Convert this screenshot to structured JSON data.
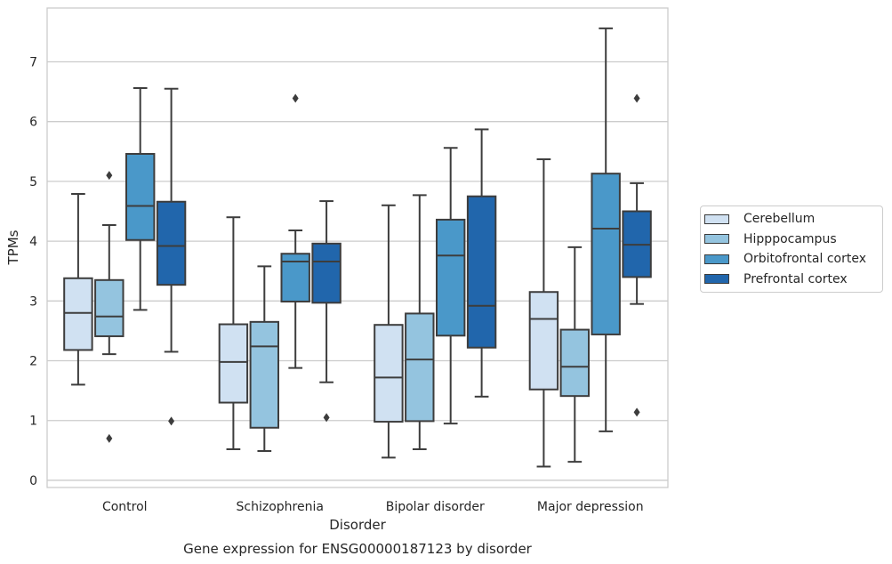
{
  "chart_data": {
    "type": "box",
    "xlabel": "Disorder",
    "ylabel": "TPMs",
    "caption": "Gene expression for ENSG00000187123 by disorder",
    "ylim": [
      -0.12,
      7.9
    ],
    "yticks": [
      0,
      1,
      2,
      3,
      4,
      5,
      6,
      7
    ],
    "grid": "horizontal",
    "legend_position": "right",
    "categories": [
      "Control",
      "Schizophrenia",
      "Bipolar disorder",
      "Major depression"
    ],
    "series": [
      {
        "name": "Cerebellum",
        "color": "#d0e1f2",
        "boxes": [
          {
            "whislo": 1.6,
            "q1": 2.18,
            "med": 2.8,
            "q3": 3.38,
            "whishi": 4.79,
            "fliers": []
          },
          {
            "whislo": 0.52,
            "q1": 1.3,
            "med": 1.98,
            "q3": 2.61,
            "whishi": 4.4,
            "fliers": []
          },
          {
            "whislo": 0.38,
            "q1": 0.98,
            "med": 1.72,
            "q3": 2.6,
            "whishi": 4.6,
            "fliers": []
          },
          {
            "whislo": 0.23,
            "q1": 1.52,
            "med": 2.7,
            "q3": 3.15,
            "whishi": 5.37,
            "fliers": []
          }
        ]
      },
      {
        "name": "Hipppocampus",
        "color": "#94c4df",
        "boxes": [
          {
            "whislo": 2.11,
            "q1": 2.41,
            "med": 2.74,
            "q3": 3.35,
            "whishi": 4.27,
            "fliers": [
              5.1,
              0.7
            ]
          },
          {
            "whislo": 0.49,
            "q1": 0.88,
            "med": 2.24,
            "q3": 2.65,
            "whishi": 3.58,
            "fliers": []
          },
          {
            "whislo": 0.52,
            "q1": 0.99,
            "med": 2.02,
            "q3": 2.79,
            "whishi": 4.77,
            "fliers": []
          },
          {
            "whislo": 0.31,
            "q1": 1.41,
            "med": 1.9,
            "q3": 2.52,
            "whishi": 3.9,
            "fliers": []
          }
        ]
      },
      {
        "name": "Orbitofrontal cortex",
        "color": "#4a98c9",
        "boxes": [
          {
            "whislo": 2.85,
            "q1": 4.02,
            "med": 4.59,
            "q3": 5.46,
            "whishi": 6.56,
            "fliers": []
          },
          {
            "whislo": 1.88,
            "q1": 2.99,
            "med": 3.66,
            "q3": 3.79,
            "whishi": 4.18,
            "fliers": [
              6.39
            ]
          },
          {
            "whislo": 0.95,
            "q1": 2.42,
            "med": 3.76,
            "q3": 4.36,
            "whishi": 5.56,
            "fliers": []
          },
          {
            "whislo": 0.82,
            "q1": 2.44,
            "med": 4.21,
            "q3": 5.13,
            "whishi": 7.56,
            "fliers": []
          }
        ]
      },
      {
        "name": "Prefrontal cortex",
        "color": "#2166ac",
        "boxes": [
          {
            "whislo": 2.15,
            "q1": 3.27,
            "med": 3.92,
            "q3": 4.66,
            "whishi": 6.55,
            "fliers": [
              0.99
            ]
          },
          {
            "whislo": 1.64,
            "q1": 2.97,
            "med": 3.66,
            "q3": 3.96,
            "whishi": 4.67,
            "fliers": [
              1.05
            ]
          },
          {
            "whislo": 1.4,
            "q1": 2.22,
            "med": 2.92,
            "q3": 4.75,
            "whishi": 5.87,
            "fliers": []
          },
          {
            "whislo": 2.95,
            "q1": 3.4,
            "med": 3.94,
            "q3": 4.5,
            "whishi": 4.97,
            "fliers": [
              6.39,
              1.14
            ]
          }
        ]
      }
    ]
  }
}
